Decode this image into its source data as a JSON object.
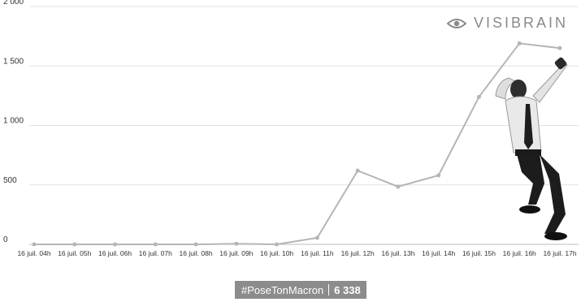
{
  "brand": {
    "name": "VISIBRAIN",
    "icon": "eye-logo-icon",
    "color": "#8a8a8a"
  },
  "badge": {
    "hashtag": "#PoseTonMacron",
    "count": "6 338",
    "background": "#8c8c8c"
  },
  "illustration": {
    "icon": "jumping-businessman-photo"
  },
  "chart_data": {
    "type": "line",
    "title": "",
    "xlabel": "",
    "ylabel": "",
    "categories": [
      "16 juil. 04h",
      "16 juil. 05h",
      "16 juil. 06h",
      "16 juil. 07h",
      "16 juil. 08h",
      "16 juil. 09h",
      "16 juil. 10h",
      "16 juil. 11h",
      "16 juil. 12h",
      "16 juil. 13h",
      "16 juil. 14h",
      "16 juil. 15h",
      "16 juil. 16h",
      "16 juil. 17h"
    ],
    "series": [
      {
        "values": [
          0,
          0,
          0,
          0,
          0,
          5,
          0,
          55,
          620,
          485,
          580,
          1240,
          1690,
          1650
        ]
      }
    ],
    "ylim": [
      0,
      2000
    ],
    "yticks": [
      0,
      500,
      1000,
      1500,
      2000
    ],
    "ytick_labels": [
      "0",
      "500",
      "1 000",
      "1 500",
      "2 000"
    ],
    "grid": true,
    "line_color": "#b5b5b5"
  }
}
